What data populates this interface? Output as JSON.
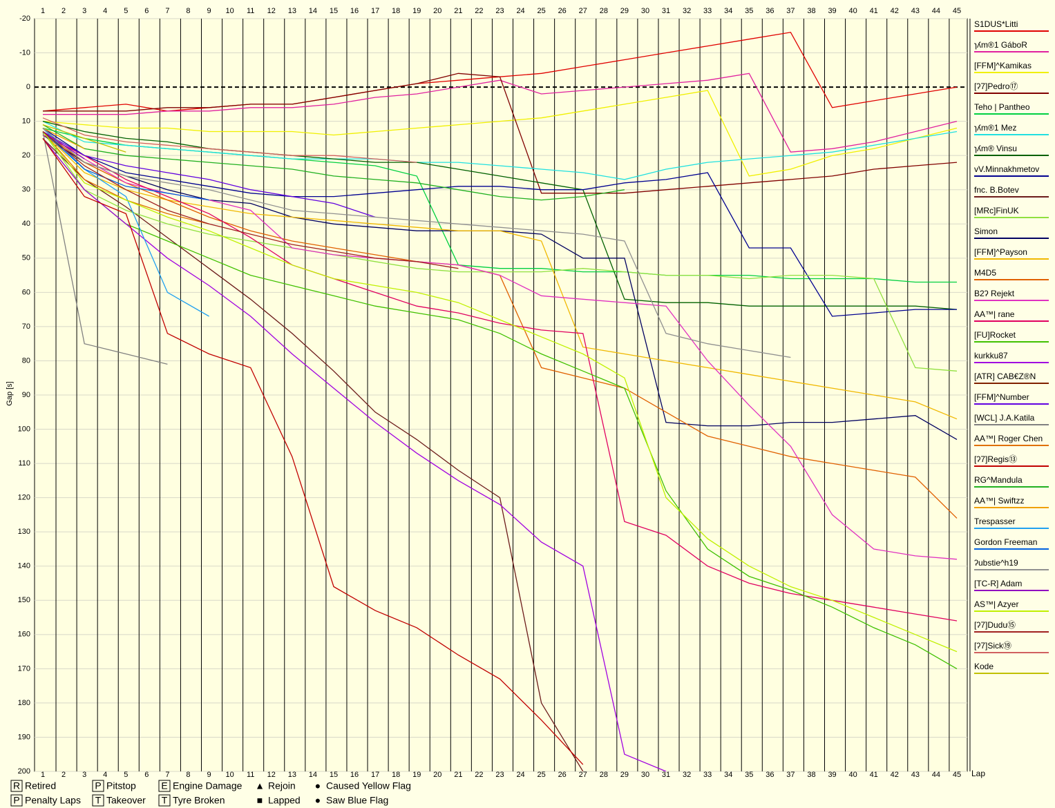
{
  "chart_data": {
    "type": "line",
    "y_label": "Gap [s]",
    "x_label": "Lap",
    "y_inverted": true,
    "x": [
      1,
      3,
      5,
      7,
      9,
      11,
      13,
      15,
      17,
      19,
      21,
      23,
      25,
      27,
      29,
      31,
      33,
      35,
      37,
      39,
      41,
      43,
      45
    ],
    "xlim": [
      0.6,
      45.5
    ],
    "xticks": [
      1,
      2,
      3,
      4,
      5,
      6,
      7,
      8,
      9,
      10,
      11,
      12,
      13,
      14,
      15,
      16,
      17,
      18,
      19,
      20,
      21,
      22,
      23,
      24,
      25,
      26,
      27,
      28,
      29,
      30,
      31,
      32,
      33,
      34,
      35,
      36,
      37,
      38,
      39,
      40,
      41,
      42,
      43,
      44,
      45
    ],
    "ylim": [
      -20,
      200
    ],
    "yticks": [
      -20,
      -10,
      0,
      10,
      20,
      30,
      40,
      50,
      60,
      70,
      80,
      90,
      100,
      110,
      120,
      130,
      140,
      150,
      160,
      170,
      180,
      190,
      200
    ],
    "grid": true,
    "legend": "right",
    "series": [
      {
        "name": "S1DUS*Litti",
        "color": "#e00000",
        "values": [
          7,
          6,
          5,
          7,
          6,
          5,
          5,
          3,
          1,
          -1,
          -2,
          -3,
          -4,
          -6,
          -8,
          -10,
          -12,
          -14,
          -16,
          6,
          4,
          2,
          0
        ]
      },
      {
        "name": "ɿʎm®1 GáboR",
        "color": "#e0209f",
        "values": [
          8,
          8,
          8,
          7,
          7,
          6,
          6,
          5,
          3,
          2,
          0,
          -2,
          2,
          1,
          0,
          -1,
          -2,
          -4,
          19,
          18,
          16,
          13,
          10
        ]
      },
      {
        "name": "[FFM]^Kamikas",
        "color": "#f0f000",
        "values": [
          10,
          11,
          12,
          12,
          13,
          13,
          13,
          14,
          13,
          12,
          11,
          10,
          9,
          7,
          5,
          3,
          1,
          26,
          24,
          20,
          18,
          15,
          12
        ]
      },
      {
        "name": "[ʔ7]Pedro⑰",
        "color": "#800000",
        "values": [
          7,
          7,
          7,
          6,
          6,
          5,
          5,
          3,
          1,
          -1,
          -4,
          -3,
          31,
          31,
          31,
          30,
          29,
          28,
          27,
          26,
          24,
          23,
          22
        ]
      },
      {
        "name": "Teho | Pantheo",
        "color": "#00d040",
        "values": [
          12,
          15,
          17,
          18,
          19,
          20,
          21,
          22,
          23,
          26,
          52,
          53,
          53,
          54,
          54,
          55,
          55,
          55,
          56,
          56,
          56,
          57,
          57
        ]
      },
      {
        "name": "ɿʎm®1 Mez",
        "color": "#20e0e0",
        "values": [
          10,
          16,
          17,
          18,
          19,
          20,
          21,
          21,
          21,
          22,
          22,
          23,
          24,
          25,
          27,
          24,
          22,
          21,
          20,
          19,
          17,
          15,
          13
        ]
      },
      {
        "name": "ɿʎm® Vinsu",
        "color": "#006000",
        "values": [
          10,
          13,
          15,
          16,
          18,
          19,
          20,
          21,
          22,
          22,
          24,
          26,
          28,
          30,
          62,
          63,
          63,
          64,
          64,
          64,
          64,
          64,
          65
        ]
      },
      {
        "name": "vV.Minnakhmetov",
        "color": "#000090",
        "values": [
          12,
          20,
          25,
          27,
          29,
          31,
          32,
          32,
          31,
          30,
          29,
          29,
          30,
          30,
          28,
          27,
          25,
          47,
          47,
          67,
          66,
          65,
          65
        ]
      },
      {
        "name": "fnc. B.Botev",
        "color": "#6b1a1a",
        "values": [
          15,
          27,
          35,
          44,
          53,
          62,
          72,
          83,
          95,
          103,
          112,
          120,
          180,
          200,
          null,
          null,
          null,
          null,
          null,
          null,
          null,
          null,
          null
        ]
      },
      {
        "name": "[MRc]FinUK",
        "color": "#90e040",
        "values": [
          13,
          30,
          36,
          40,
          43,
          45,
          47,
          49,
          51,
          53,
          54,
          54,
          54,
          53,
          54,
          55,
          55,
          56,
          55,
          55,
          56,
          82,
          83
        ]
      },
      {
        "name": "Simon",
        "color": "#000060",
        "values": [
          14,
          22,
          26,
          30,
          33,
          34,
          38,
          40,
          41,
          42,
          42,
          42,
          43,
          50,
          50,
          98,
          99,
          99,
          98,
          98,
          97,
          96,
          103
        ]
      },
      {
        "name": "[FFM]^Payson",
        "color": "#f0b800",
        "values": [
          13,
          25,
          30,
          33,
          35,
          37,
          38,
          39,
          40,
          41,
          42,
          42,
          45,
          76,
          78,
          80,
          82,
          84,
          86,
          88,
          90,
          92,
          97
        ]
      },
      {
        "name": "M4D5",
        "color": "#e06000",
        "values": [
          13,
          22,
          28,
          33,
          38,
          42,
          45,
          47,
          49,
          51,
          52,
          55,
          82,
          85,
          88,
          95,
          102,
          105,
          108,
          110,
          112,
          114,
          126
        ]
      },
      {
        "name": "B2ʔ Rejekt",
        "color": "#e030c0",
        "values": [
          13,
          21,
          28,
          31,
          33,
          36,
          47,
          49,
          50,
          51,
          52,
          55,
          61,
          62,
          63,
          64,
          80,
          93,
          105,
          125,
          135,
          137,
          138
        ]
      },
      {
        "name": "AA™| rane",
        "color": "#e00060",
        "values": [
          14,
          20,
          27,
          32,
          37,
          44,
          52,
          56,
          60,
          64,
          66,
          69,
          71,
          72,
          127,
          131,
          140,
          145,
          148,
          150,
          152,
          154,
          156
        ]
      },
      {
        "name": "[FU]Rocket",
        "color": "#40c000",
        "values": [
          15,
          30,
          40,
          45,
          50,
          55,
          58,
          61,
          64,
          66,
          68,
          72,
          78,
          83,
          88,
          118,
          135,
          143,
          147,
          152,
          158,
          163,
          170
        ]
      },
      {
        "name": "kurkku87",
        "color": "#a000e0",
        "values": [
          15,
          30,
          40,
          50,
          58,
          67,
          78,
          88,
          98,
          107,
          115,
          122,
          133,
          140,
          195,
          200,
          null,
          null,
          null,
          null,
          null,
          null,
          null
        ]
      },
      {
        "name": "[ATR] CAB€Z®N",
        "color": "#802000",
        "values": [
          12,
          24,
          null,
          null,
          null,
          null,
          null,
          null,
          null,
          null,
          null,
          null,
          null,
          null,
          null,
          null,
          null,
          null,
          null,
          null,
          null,
          null,
          null
        ]
      },
      {
        "name": "[FFM]^Number",
        "color": "#6000e0",
        "values": [
          13,
          20,
          23,
          25,
          27,
          30,
          32,
          34,
          38,
          null,
          null,
          null,
          null,
          null,
          null,
          null,
          null,
          null,
          null,
          null,
          null,
          null,
          null
        ]
      },
      {
        "name": "[WCL] J.A.Katila",
        "color": "#808080",
        "values": [
          13,
          75,
          78,
          81,
          null,
          null,
          null,
          null,
          null,
          null,
          null,
          null,
          null,
          null,
          null,
          null,
          null,
          null,
          null,
          null,
          null,
          null,
          null
        ]
      },
      {
        "name": "AA™| Roger Chen",
        "color": "#e07000",
        "values": [
          13,
          27,
          33,
          37,
          40,
          null,
          null,
          null,
          null,
          null,
          null,
          null,
          null,
          null,
          null,
          null,
          null,
          null,
          null,
          null,
          null,
          null,
          null
        ]
      },
      {
        "name": "[ʔ7]Regis⑬",
        "color": "#c00000",
        "values": [
          15,
          32,
          37,
          72,
          78,
          82,
          108,
          146,
          153,
          158,
          166,
          173,
          185,
          198,
          null,
          null,
          null,
          null,
          null,
          null,
          null,
          null,
          null
        ]
      },
      {
        "name": "RG^Mandula",
        "color": "#20b020",
        "values": [
          11,
          18,
          20,
          21,
          22,
          23,
          24,
          26,
          27,
          28,
          30,
          32,
          33,
          32,
          30,
          null,
          null,
          null,
          null,
          null,
          null,
          null,
          null
        ]
      },
      {
        "name": "AA™| Swiftzz",
        "color": "#f0a000",
        "values": [
          12,
          18,
          null,
          null,
          null,
          null,
          null,
          null,
          null,
          null,
          null,
          null,
          null,
          null,
          null,
          null,
          null,
          null,
          null,
          null,
          null,
          null,
          null
        ]
      },
      {
        "name": "Trespasser",
        "color": "#20a0f0",
        "values": [
          12,
          24,
          32,
          60,
          67,
          null,
          null,
          null,
          null,
          null,
          null,
          null,
          null,
          null,
          null,
          null,
          null,
          null,
          null,
          null,
          null,
          null,
          null
        ]
      },
      {
        "name": "Gordon Freeman",
        "color": "#0060e0",
        "values": [
          13,
          24,
          29,
          31,
          33,
          null,
          null,
          null,
          null,
          null,
          null,
          null,
          null,
          null,
          null,
          null,
          null,
          null,
          null,
          null,
          null,
          null,
          null
        ]
      },
      {
        "name": "ʔubstie^h19",
        "color": "#909090",
        "values": [
          12,
          22,
          26,
          28,
          30,
          33,
          36,
          37,
          38,
          39,
          40,
          41,
          42,
          43,
          45,
          72,
          75,
          77,
          79,
          null,
          null,
          null,
          null
        ]
      },
      {
        "name": "[TC-R] Adam",
        "color": "#9000c0",
        "values": [
          13,
          21,
          null,
          null,
          null,
          null,
          null,
          null,
          null,
          null,
          null,
          null,
          null,
          null,
          null,
          null,
          null,
          null,
          null,
          null,
          null,
          null,
          null
        ]
      },
      {
        "name": "AS™| Azyer",
        "color": "#c0f000",
        "values": [
          13,
          28,
          33,
          38,
          42,
          47,
          52,
          56,
          58,
          60,
          63,
          68,
          73,
          78,
          85,
          120,
          132,
          140,
          146,
          150,
          155,
          160,
          165
        ]
      },
      {
        "name": "[ʔ7]Dudu⑮",
        "color": "#a02020",
        "values": [
          13,
          23,
          30,
          36,
          40,
          43,
          46,
          48,
          50,
          51,
          53,
          null,
          null,
          null,
          null,
          null,
          null,
          null,
          null,
          null,
          null,
          null,
          null
        ]
      },
      {
        "name": "[ʔ7]Sick⑲",
        "color": "#d06060",
        "values": [
          9,
          14,
          16,
          17,
          18,
          19,
          20,
          20,
          21,
          22,
          null,
          null,
          null,
          null,
          null,
          null,
          null,
          null,
          null,
          null,
          null,
          null,
          null
        ]
      },
      {
        "name": "Kode",
        "color": "#c0c000",
        "values": [
          11,
          15,
          19,
          null,
          null,
          null,
          null,
          null,
          null,
          null,
          null,
          null,
          null,
          null,
          null,
          null,
          null,
          null,
          null,
          null,
          null,
          null,
          null
        ]
      }
    ],
    "symbol_legend": [
      {
        "symbol": "R",
        "label": "Retired"
      },
      {
        "symbol": "P",
        "label": "Penalty Laps"
      },
      {
        "symbol": "P",
        "label": "Pitstop"
      },
      {
        "symbol": "T",
        "label": "Takeover"
      },
      {
        "symbol": "E",
        "label": "Engine Damage"
      },
      {
        "symbol": "T",
        "label": "Tyre Broken"
      },
      {
        "symbol": "▲",
        "label": "Rejoin"
      },
      {
        "symbol": "■",
        "label": "Lapped"
      },
      {
        "symbol": "●",
        "label": "Caused Yellow Flag"
      },
      {
        "symbol": "●",
        "label": "Saw Blue Flag"
      }
    ]
  }
}
